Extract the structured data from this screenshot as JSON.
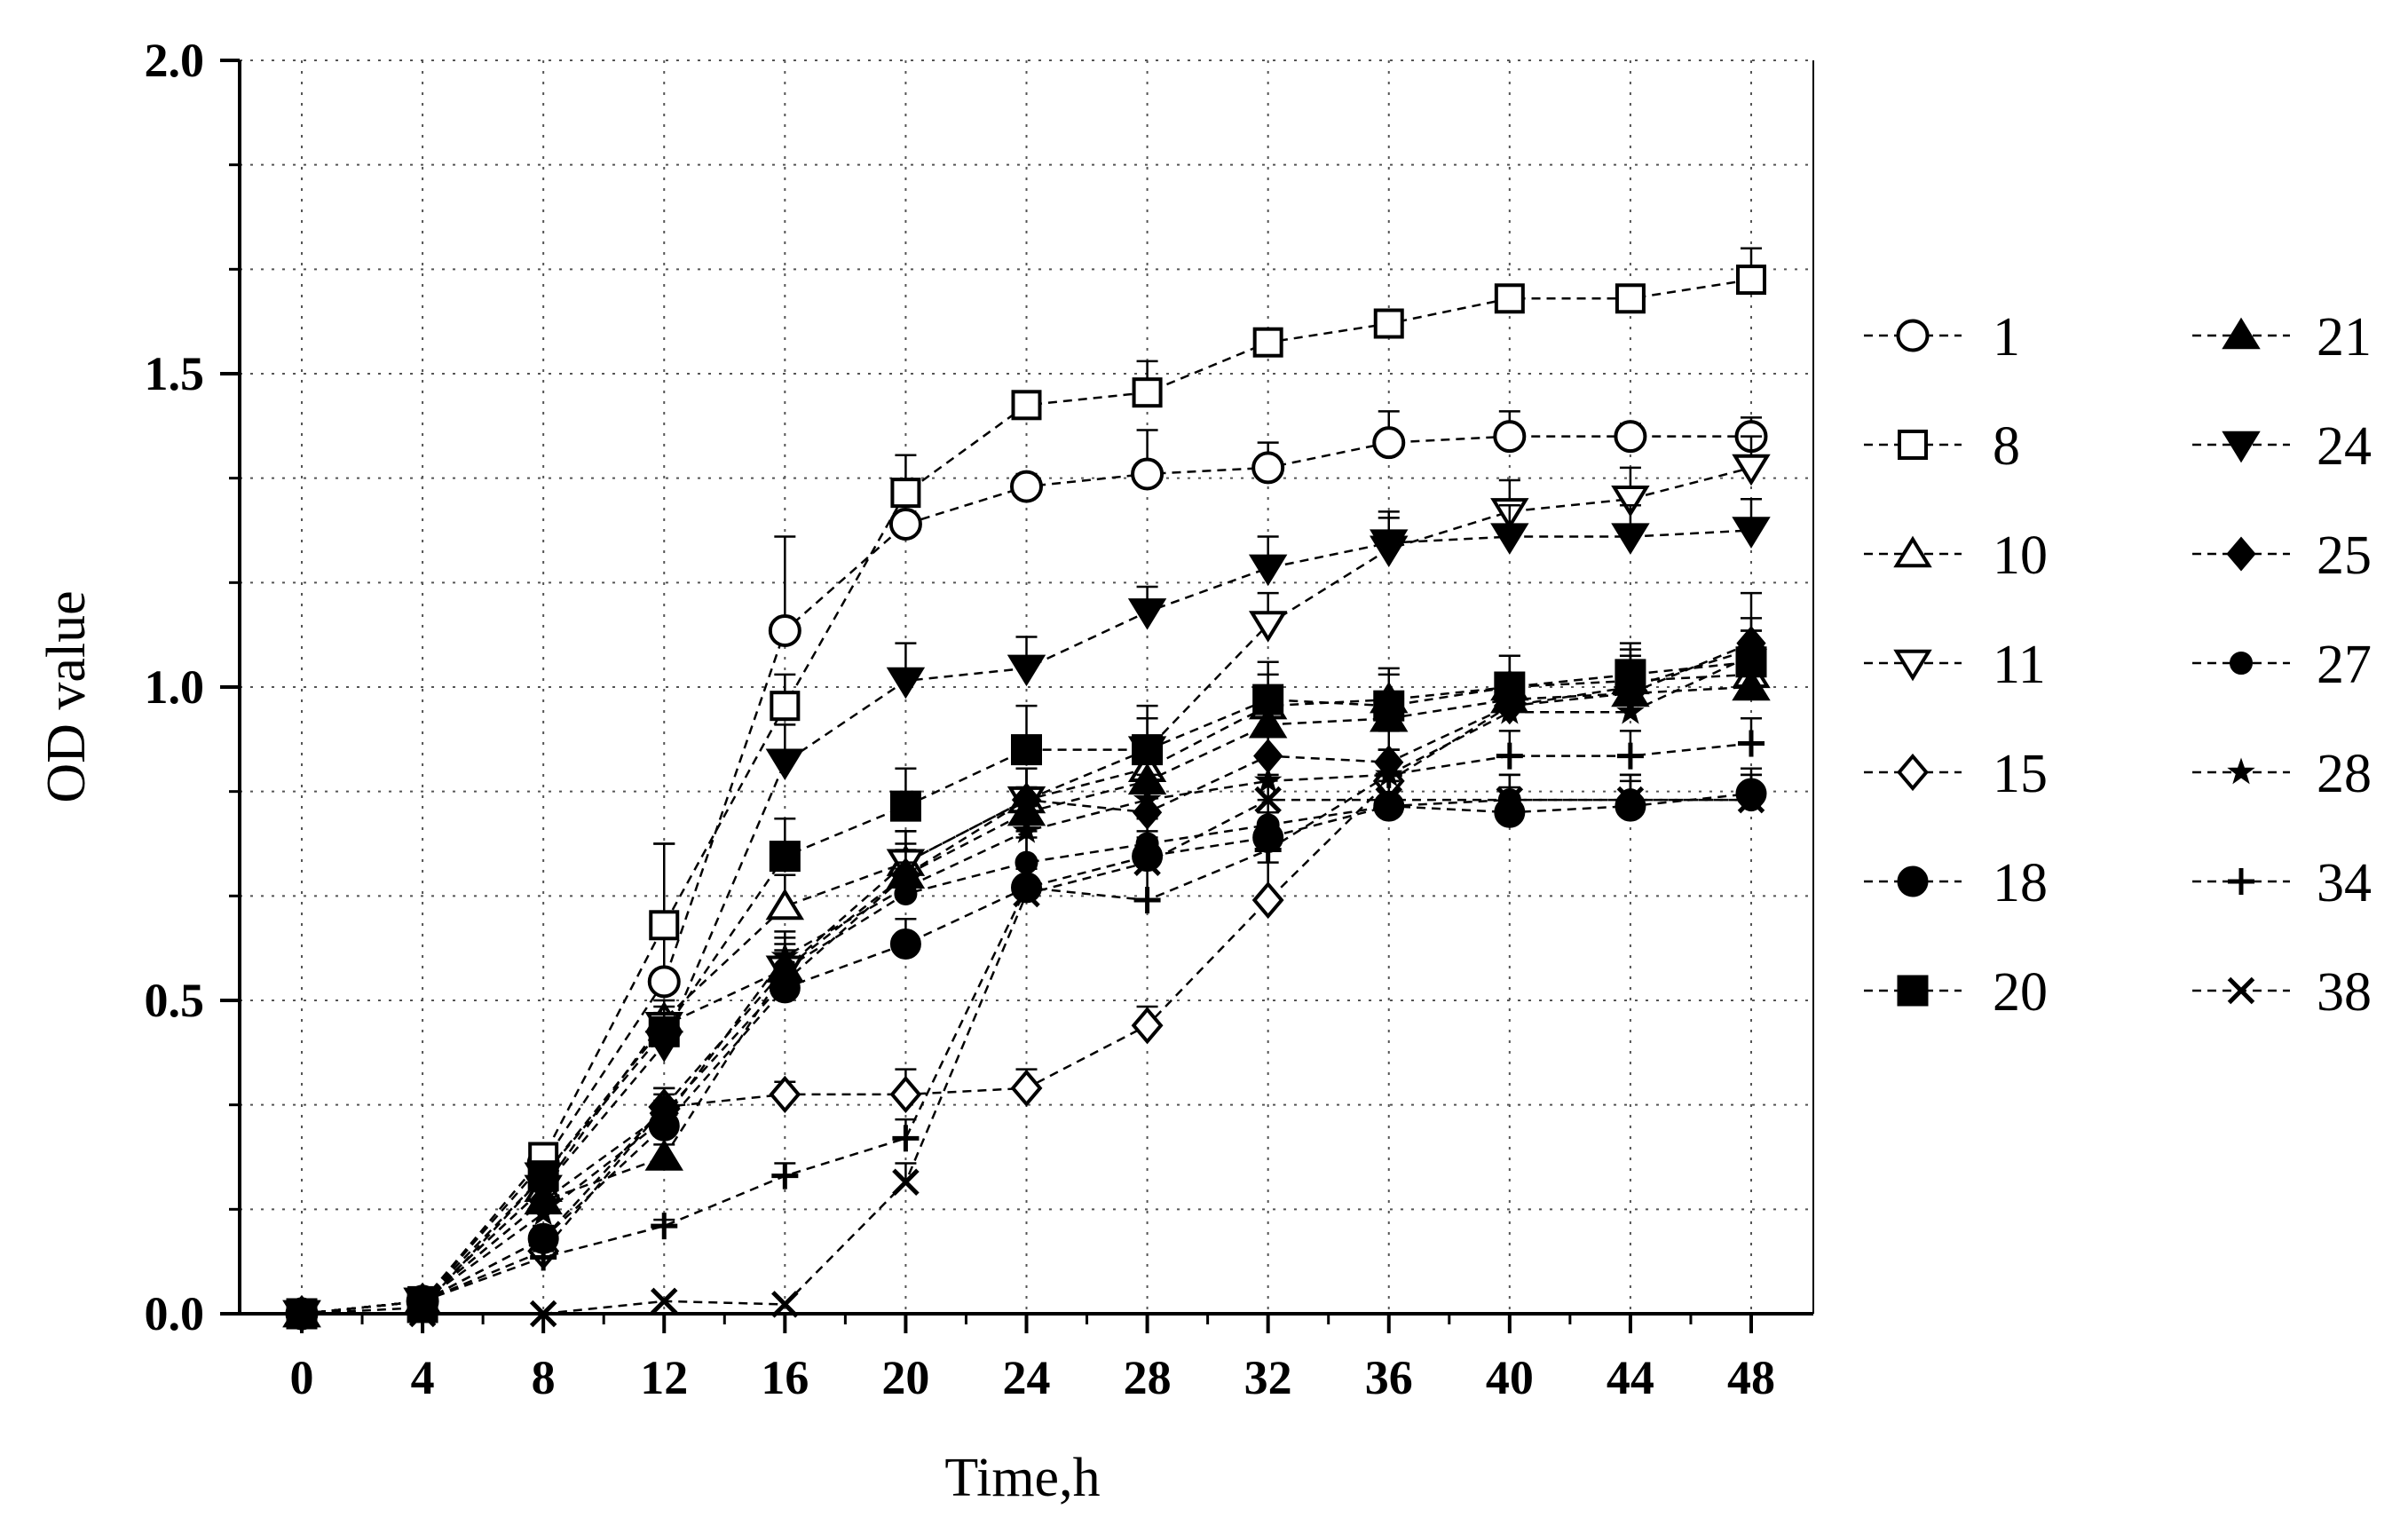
{
  "chart_data": {
    "type": "line",
    "xlabel": "Time,h",
    "ylabel": "OD value",
    "xlim": [
      0,
      48
    ],
    "ylim": [
      0,
      2.0
    ],
    "x": [
      0,
      4,
      8,
      12,
      16,
      20,
      24,
      28,
      32,
      36,
      40,
      44,
      48
    ],
    "xticks": [
      "0",
      "4",
      "8",
      "12",
      "16",
      "20",
      "24",
      "28",
      "32",
      "36",
      "40",
      "44",
      "48"
    ],
    "yticks": [
      "0.0",
      "0.5",
      "1.0",
      "1.5",
      "2.0"
    ],
    "grid": "dotted",
    "legend_position": "right",
    "series": [
      {
        "name": "1",
        "marker": "circle-open",
        "values": [
          0,
          0.02,
          0.24,
          0.53,
          1.09,
          1.26,
          1.32,
          1.34,
          1.35,
          1.39,
          1.4,
          1.4,
          1.4
        ],
        "error": [
          0,
          0.01,
          0.02,
          0.22,
          0.15,
          0.02,
          0.02,
          0.07,
          0.04,
          0.05,
          0.04,
          0.02,
          0.03
        ]
      },
      {
        "name": "8",
        "marker": "square-open",
        "values": [
          0,
          0.02,
          0.25,
          0.62,
          0.97,
          1.31,
          1.45,
          1.47,
          1.55,
          1.58,
          1.62,
          1.62,
          1.65
        ],
        "error": [
          0,
          0.01,
          0.02,
          0.13,
          0.05,
          0.06,
          0.02,
          0.05,
          0.02,
          0.02,
          0.02,
          0.02,
          0.05
        ]
      },
      {
        "name": "10",
        "marker": "triangle-up-open",
        "values": [
          0,
          0.02,
          0.2,
          0.47,
          0.65,
          0.72,
          0.82,
          0.87,
          0.97,
          0.98,
          1.0,
          1.01,
          1.02
        ],
        "error": [
          0,
          0.01,
          0.02,
          0.03,
          0.05,
          0.05,
          0.05,
          0.05,
          0.05,
          0.05,
          0.05,
          0.05,
          0.05
        ]
      },
      {
        "name": "11",
        "marker": "triangle-down-open",
        "values": [
          0,
          0.02,
          0.22,
          0.46,
          0.55,
          0.72,
          0.82,
          0.9,
          1.1,
          1.22,
          1.28,
          1.3,
          1.35
        ],
        "error": [
          0,
          0.01,
          0.02,
          0.03,
          0.05,
          0.05,
          0.05,
          0.05,
          0.05,
          0.05,
          0.05,
          0.05,
          0.05
        ]
      },
      {
        "name": "15",
        "marker": "diamond-open",
        "values": [
          0,
          0.02,
          0.1,
          0.33,
          0.35,
          0.35,
          0.36,
          0.46,
          0.66,
          0.85,
          0.97,
          1.0,
          1.06
        ],
        "error": [
          0,
          0.01,
          0.02,
          0.03,
          0.02,
          0.04,
          0.03,
          0.03,
          0.06,
          0.05,
          0.05,
          0.05,
          0.05
        ]
      },
      {
        "name": "18",
        "marker": "circle-filled",
        "values": [
          0,
          0.02,
          0.12,
          0.3,
          0.52,
          0.59,
          0.68,
          0.73,
          0.76,
          0.81,
          0.8,
          0.81,
          0.83
        ],
        "error": [
          0,
          0.01,
          0.02,
          0.03,
          0.03,
          0.04,
          0.04,
          0.04,
          0.04,
          0.04,
          0.04,
          0.04,
          0.04
        ]
      },
      {
        "name": "20",
        "marker": "square-filled",
        "values": [
          0,
          0.01,
          0.22,
          0.45,
          0.73,
          0.81,
          0.9,
          0.9,
          0.98,
          0.97,
          1.0,
          1.02,
          1.04
        ],
        "error": [
          0,
          0.01,
          0.02,
          0.03,
          0.06,
          0.06,
          0.07,
          0.07,
          0.06,
          0.05,
          0.05,
          0.05,
          0.05
        ]
      },
      {
        "name": "21",
        "marker": "triangle-up-filled",
        "values": [
          0,
          0.02,
          0.18,
          0.25,
          0.55,
          0.7,
          0.8,
          0.85,
          0.94,
          0.95,
          0.98,
          0.99,
          1.0
        ],
        "error": [
          0,
          0.01,
          0.02,
          0.02,
          0.04,
          0.04,
          0.04,
          0.04,
          0.04,
          0.04,
          0.04,
          0.04,
          0.04
        ]
      },
      {
        "name": "24",
        "marker": "triangle-down-filled",
        "values": [
          0,
          0.02,
          0.2,
          0.43,
          0.88,
          1.01,
          1.03,
          1.12,
          1.19,
          1.23,
          1.24,
          1.24,
          1.25
        ],
        "error": [
          0,
          0.01,
          0.02,
          0.03,
          0.06,
          0.06,
          0.05,
          0.04,
          0.05,
          0.05,
          0.05,
          0.05,
          0.05
        ]
      },
      {
        "name": "25",
        "marker": "diamond-filled",
        "values": [
          0,
          0.02,
          0.18,
          0.32,
          0.53,
          0.7,
          0.82,
          0.8,
          0.89,
          0.88,
          0.97,
          0.99,
          1.07
        ],
        "error": [
          0,
          0.01,
          0.02,
          0.03,
          0.04,
          0.05,
          0.05,
          0.05,
          0.05,
          0.05,
          0.05,
          0.05,
          0.08
        ]
      },
      {
        "name": "27",
        "marker": "dot",
        "values": [
          0,
          0.02,
          0.12,
          0.33,
          0.55,
          0.67,
          0.72,
          0.75,
          0.78,
          0.81,
          0.82,
          0.82,
          0.82
        ],
        "error": [
          0,
          0.01,
          0.02,
          0.03,
          0.03,
          0.04,
          0.04,
          0.04,
          0.04,
          0.04,
          0.04,
          0.04,
          0.04
        ]
      },
      {
        "name": "28",
        "marker": "star",
        "values": [
          0,
          0.02,
          0.16,
          0.31,
          0.57,
          0.68,
          0.77,
          0.82,
          0.85,
          0.86,
          0.96,
          0.96,
          1.05
        ],
        "error": [
          0,
          0.01,
          0.02,
          0.03,
          0.04,
          0.04,
          0.04,
          0.04,
          0.04,
          0.04,
          0.04,
          0.04,
          0.04
        ]
      },
      {
        "name": "34",
        "marker": "plus",
        "values": [
          0,
          0.02,
          0.09,
          0.14,
          0.22,
          0.28,
          0.68,
          0.66,
          0.74,
          0.86,
          0.89,
          0.89,
          0.91
        ],
        "error": [
          0,
          0.01,
          0.01,
          0.01,
          0.02,
          0.03,
          0.09,
          0.07,
          0.04,
          0.04,
          0.04,
          0.04,
          0.04
        ]
      },
      {
        "name": "38",
        "marker": "x",
        "values": [
          0,
          0.0,
          0.0,
          0.02,
          0.015,
          0.21,
          0.67,
          0.72,
          0.82,
          0.82,
          0.82,
          0.82,
          0.82
        ],
        "error": [
          0,
          0.005,
          0.005,
          0.005,
          0.005,
          0.03,
          0.04,
          0.04,
          0.04,
          0.04,
          0.04,
          0.04,
          0.04
        ]
      }
    ]
  }
}
